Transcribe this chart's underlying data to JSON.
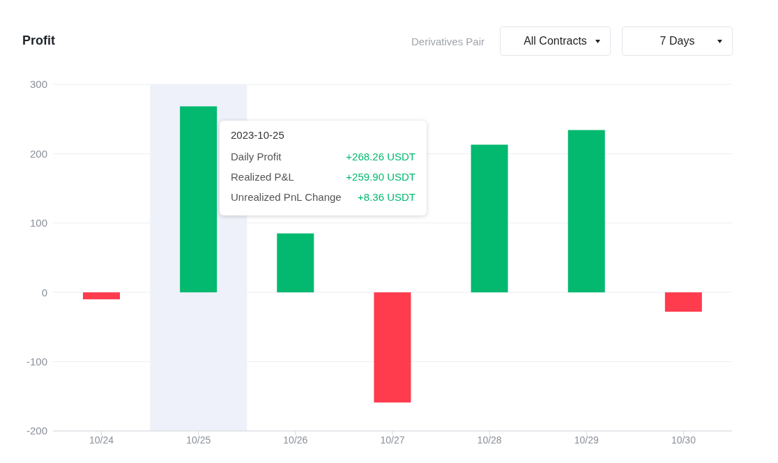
{
  "chart_data": {
    "type": "bar",
    "title": "Profit",
    "categories": [
      "10/24",
      "10/25",
      "10/26",
      "10/27",
      "10/28",
      "10/29",
      "10/30"
    ],
    "values": [
      -10,
      268.26,
      85,
      -159,
      213,
      234,
      -28
    ],
    "colors": [
      "#ff3b4e",
      "#02b96f",
      "#02b96f",
      "#ff3b4e",
      "#02b96f",
      "#02b96f",
      "#ff3b4e"
    ],
    "ylim": [
      -200,
      300
    ],
    "yticks": [
      -200,
      -100,
      0,
      100,
      200,
      300
    ],
    "grid": "y",
    "bands": [
      {
        "axis": "x",
        "from": "10/25",
        "to": "10/25",
        "color": "#eef1f9"
      }
    ],
    "annotations": [
      "Derivatives Pair",
      "All Contracts",
      "7 Days",
      "2023-10-25",
      "Daily Profit",
      "+268.26 USDT",
      "Realized P&L",
      "+259.90 USDT",
      "Unrealized PnL Change",
      "+8.36 USDT"
    ]
  }
}
